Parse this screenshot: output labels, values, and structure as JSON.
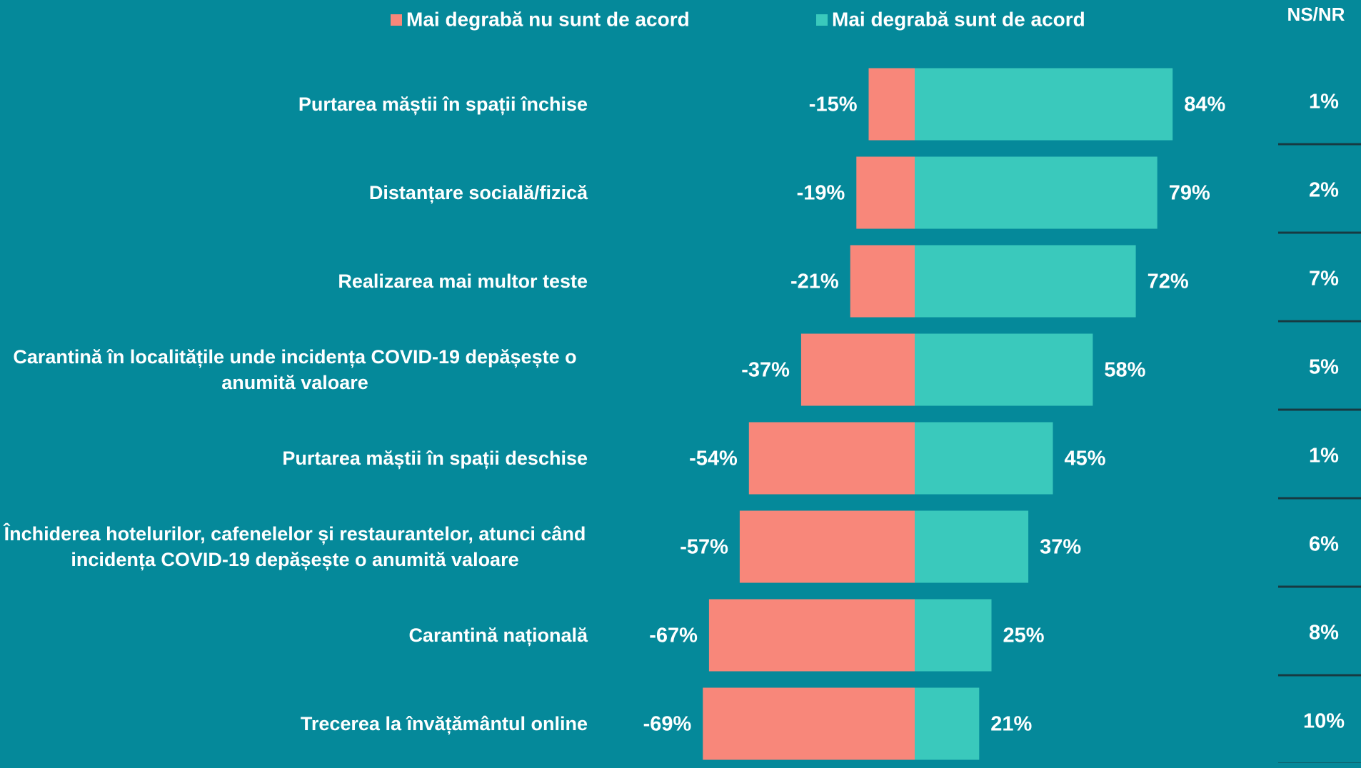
{
  "chart_data": {
    "type": "diverging-bar",
    "categories": [
      "Purtarea măștii în spații închise",
      "Distanțare socială/fizică",
      "Realizarea mai multor teste",
      "Carantină în localitățile unde incidența COVID-19 depășește o anumită valoare",
      "Purtarea măștii în spații deschise",
      "Închiderea hotelurilor, cafenelelor și restaurantelor, atunci când incidența COVID-19 depășește o anumită valoare",
      "Carantină națională",
      "Trecerea la învățământul online"
    ],
    "series": [
      {
        "name": "Mai degrabă nu sunt de acord",
        "color": "#f8877a",
        "values": [
          -15,
          -19,
          -21,
          -37,
          -54,
          -57,
          -67,
          -69
        ],
        "value_labels": [
          "-15%",
          "-19%",
          "-21%",
          "-37%",
          "-54%",
          "-57%",
          "-67%",
          "-69%"
        ]
      },
      {
        "name": "Mai degrabă sunt de acord",
        "color": "#3ac9bc",
        "values": [
          84,
          79,
          72,
          58,
          45,
          37,
          25,
          21
        ],
        "value_labels": [
          "84%",
          "79%",
          "72%",
          "58%",
          "45%",
          "37%",
          "25%",
          "21%"
        ]
      }
    ],
    "ns_nr": {
      "title": "NS/NR",
      "values": [
        1,
        2,
        7,
        5,
        1,
        6,
        8,
        10
      ],
      "value_labels": [
        "1%",
        "2%",
        "7%",
        "5%",
        "1%",
        "6%",
        "8%",
        "10%"
      ]
    }
  }
}
